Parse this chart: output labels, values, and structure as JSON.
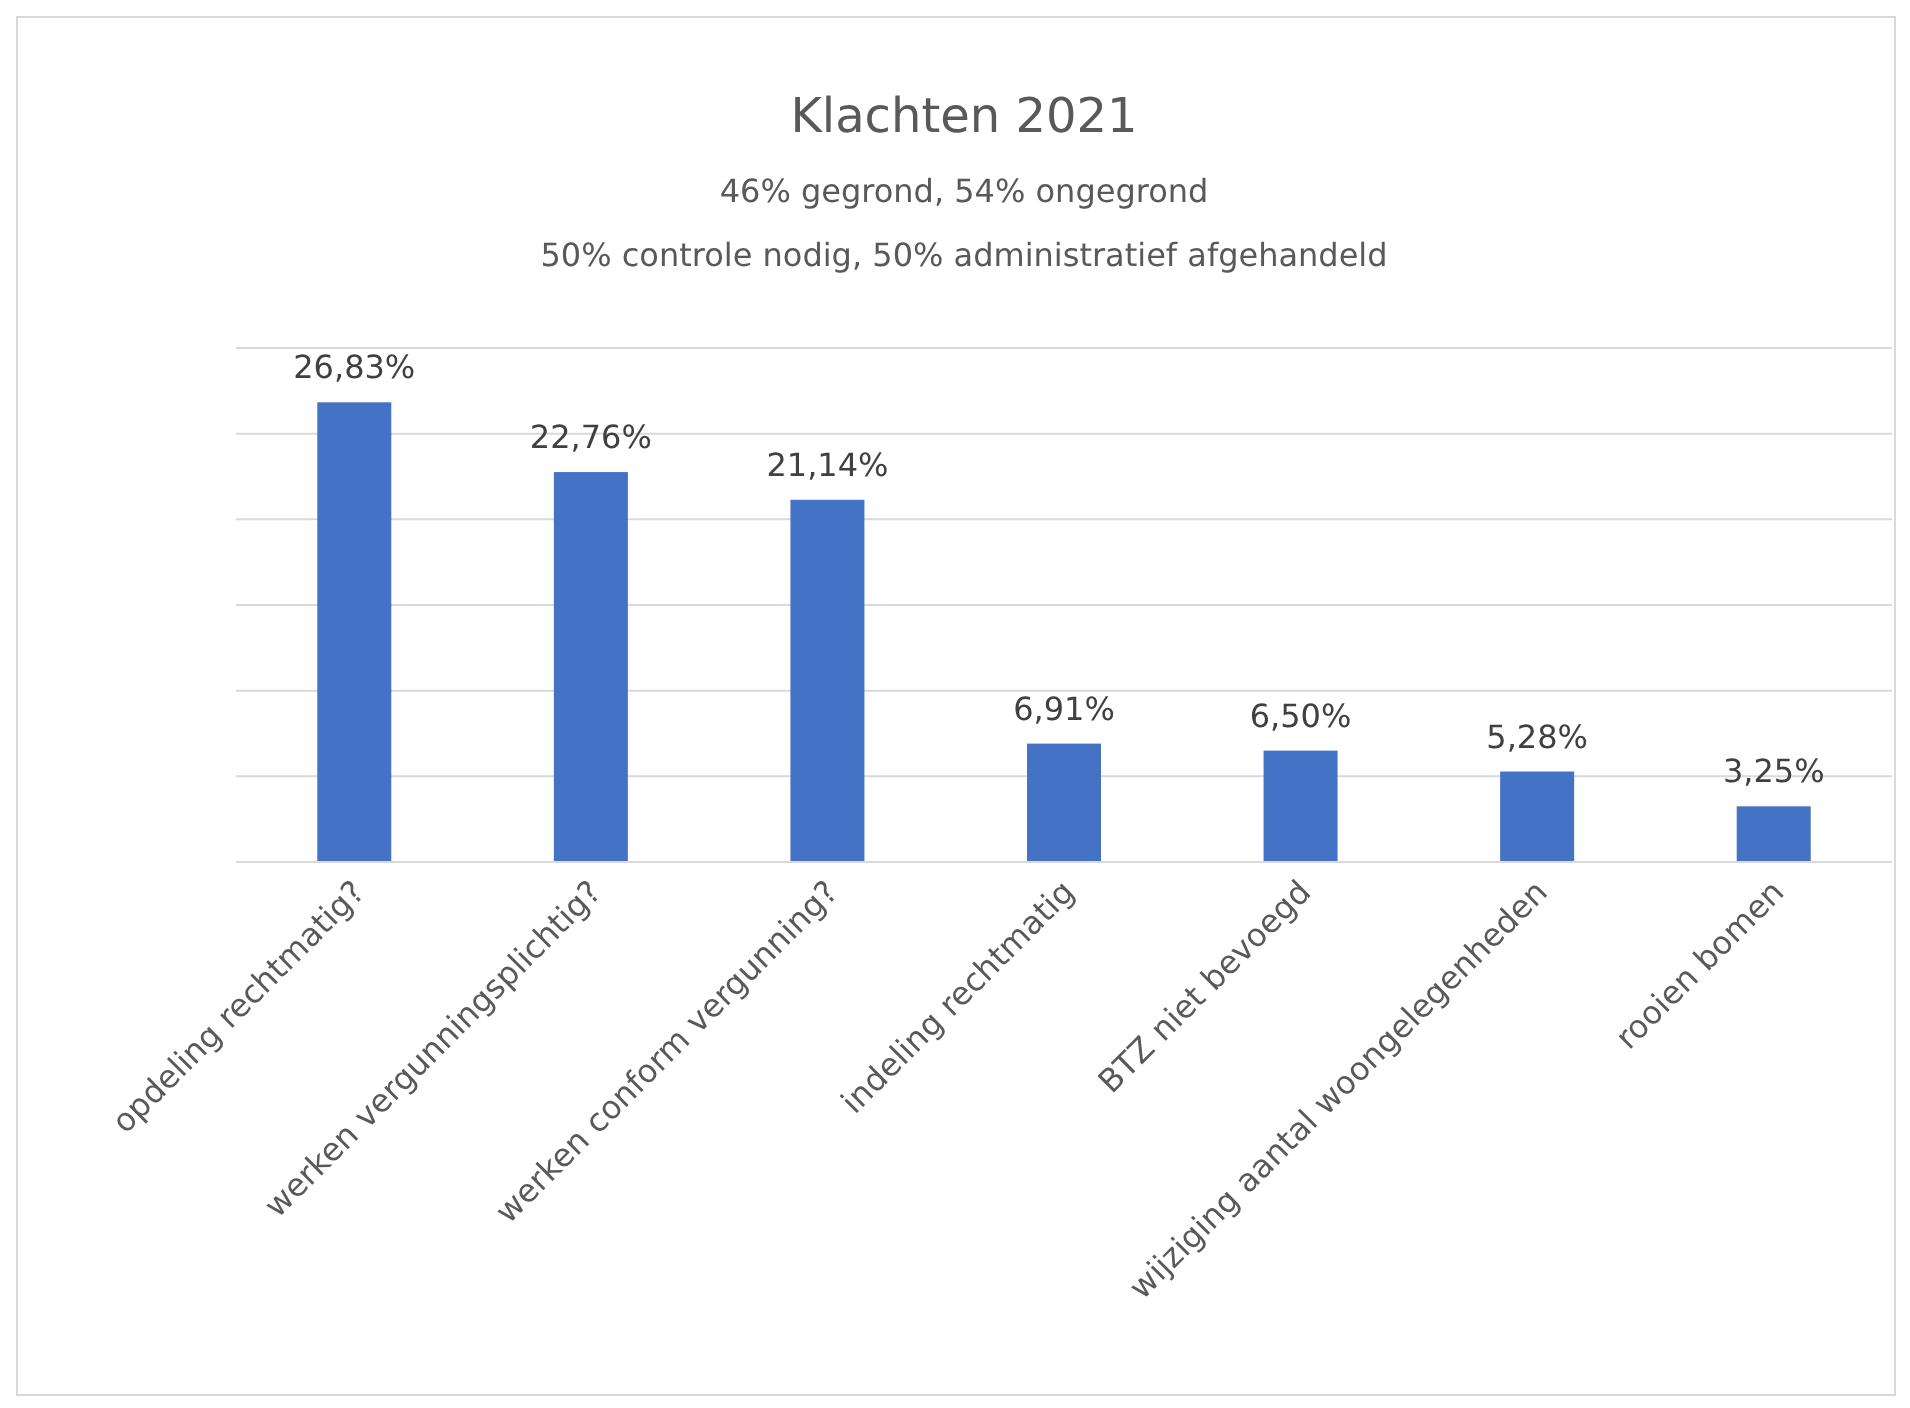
{
  "chart_data": {
    "type": "bar",
    "title": "Klachten 2021",
    "subtitle": "46% gegrond,  54% ongegrond",
    "annotations": [
      "50% controle nodig, 50% administratief afgehandeld"
    ],
    "categories": [
      "opdeling rechtmatig?",
      "werken vergunningsplichtig?",
      "werken conform vergunning?",
      "indeling rechtmatig",
      "BTZ niet bevoegd",
      "wijziging aantal woongelegenheden",
      "rooien bomen"
    ],
    "values": [
      26.83,
      22.76,
      21.14,
      6.91,
      6.5,
      5.28,
      3.25
    ],
    "value_labels": [
      "26,83%",
      "22,76%",
      "21,14%",
      "6,91%",
      "6,50%",
      "5,28%",
      "3,25%"
    ],
    "color": "#4472c4",
    "ylim": [
      0,
      30
    ],
    "yticks": [
      {
        "value": 0,
        "label": null
      },
      {
        "value": 5,
        "label": null
      },
      {
        "value": 10,
        "label": null
      },
      {
        "value": 15,
        "label": null
      },
      {
        "value": 20,
        "label": null
      },
      {
        "value": 25,
        "label": null
      },
      {
        "value": 30,
        "label": null
      }
    ],
    "grid": "y",
    "tick_labels": "x"
  }
}
